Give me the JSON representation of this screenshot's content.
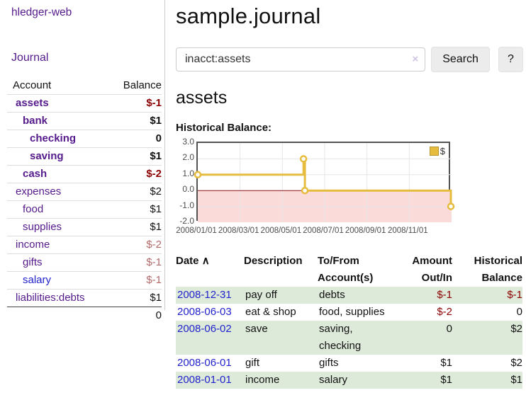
{
  "app": {
    "brand": "hledger-web",
    "nav_journal": "Journal"
  },
  "sidebar": {
    "header": {
      "account": "Account",
      "balance": "Balance"
    },
    "accounts": [
      {
        "name": "assets",
        "balance": "$-1",
        "level": 0,
        "bold": true,
        "amount_class": "neg"
      },
      {
        "name": "bank",
        "balance": "$1",
        "level": 1,
        "bold": true,
        "amount_class": ""
      },
      {
        "name": "checking",
        "balance": "0",
        "level": 2,
        "bold": true,
        "amount_class": ""
      },
      {
        "name": "saving",
        "balance": "$1",
        "level": 2,
        "bold": true,
        "amount_class": ""
      },
      {
        "name": "cash",
        "balance": "$-2",
        "level": 1,
        "bold": true,
        "amount_class": "neg"
      },
      {
        "name": "expenses",
        "balance": "$2",
        "level": 0,
        "bold": false,
        "amount_class": ""
      },
      {
        "name": "food",
        "balance": "$1",
        "level": 1,
        "bold": false,
        "amount_class": ""
      },
      {
        "name": "supplies",
        "balance": "$1",
        "level": 1,
        "bold": false,
        "amount_class": ""
      },
      {
        "name": "income",
        "balance": "$-2",
        "level": 0,
        "bold": false,
        "amount_class": "negfade"
      },
      {
        "name": "gifts",
        "balance": "$-1",
        "level": 1,
        "bold": false,
        "amount_class": "negfade"
      },
      {
        "name": "salary",
        "balance": "$-1",
        "level": 1,
        "bold": false,
        "amount_class": "negfade",
        "blue": true
      },
      {
        "name": "liabilities:debts",
        "balance": "$1",
        "level": 0,
        "bold": false,
        "amount_class": ""
      }
    ],
    "total": "0"
  },
  "header": {
    "title": "sample.journal"
  },
  "search": {
    "query": "inacct:assets",
    "clear_icon": "×",
    "button": "Search",
    "help": "?"
  },
  "account_page": {
    "title": "assets"
  },
  "chart_data": {
    "type": "line",
    "step": true,
    "title": "Historical Balance:",
    "legend": [
      {
        "label": "$",
        "color": "#e6bc3e"
      }
    ],
    "series": [
      {
        "name": "$",
        "points": [
          [
            "2008-01-01",
            1
          ],
          [
            "2008-06-01",
            2
          ],
          [
            "2008-06-03",
            0
          ],
          [
            "2008-12-31",
            -1
          ]
        ]
      }
    ],
    "ylim": [
      -2,
      3
    ],
    "xlim": [
      "2008-01-01",
      "2009-01-01"
    ],
    "y_ticks": [
      "3.0",
      "2.0",
      "1.0",
      "0.0",
      "-1.0",
      "-2.0"
    ],
    "x_ticks": [
      {
        "label": "2008/01/01",
        "month": 0
      },
      {
        "label": "2008/03/01",
        "month": 2
      },
      {
        "label": "2008/05/01",
        "month": 4
      },
      {
        "label": "2008/07/01",
        "month": 6
      },
      {
        "label": "2008/09/01",
        "month": 8
      },
      {
        "label": "2008/11/01",
        "month": 10
      }
    ],
    "grid": true,
    "line_color": "#e6bc3e",
    "negative_fill": "#fbdada",
    "zero_line_color": "#8c1717",
    "gridline_color": "#e6e6e6"
  },
  "register": {
    "columns": [
      "Date",
      "Description",
      "To/From Account(s)",
      "Amount Out/In",
      "Historical Balance"
    ],
    "sort_caret": "∧",
    "rows": [
      {
        "date": "2008-12-31",
        "description": "pay off",
        "accounts": "debts",
        "amount": "$-1",
        "balance": "$-1"
      },
      {
        "date": "2008-06-03",
        "description": "eat & shop",
        "accounts": "food, supplies",
        "amount": "$-2",
        "balance": "0"
      },
      {
        "date": "2008-06-02",
        "description": "save",
        "accounts": "saving, checking",
        "amount": "0",
        "balance": "$2"
      },
      {
        "date": "2008-06-01",
        "description": "gift",
        "accounts": "gifts",
        "amount": "$1",
        "balance": "$2"
      },
      {
        "date": "2008-01-01",
        "description": "income",
        "accounts": "salary",
        "amount": "$1",
        "balance": "$1"
      }
    ]
  }
}
